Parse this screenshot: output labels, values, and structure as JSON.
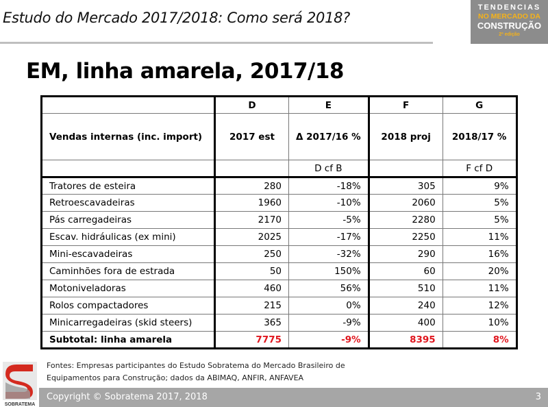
{
  "header": {
    "subtitle": "Estudo do Mercado 2017/2018: Como será 2018?",
    "logo_text": [
      "TENDENCIAS",
      "NO MERCADO DA",
      "CONSTRUÇÃO",
      "2ª edição"
    ]
  },
  "page_title": "EM, linha amarela, 2017/18",
  "table": {
    "col_letters": [
      "",
      "D",
      "E",
      "F",
      "G"
    ],
    "col_headers": [
      "Vendas internas (inc. import)",
      "2017 est",
      "Δ 2017/16 %",
      "2018 proj",
      "2018/17 %"
    ],
    "col_notes": [
      "",
      "",
      "D cf B",
      "",
      "F cf D"
    ],
    "rows": [
      [
        "Tratores de esteira",
        "280",
        "-18%",
        "305",
        "9%"
      ],
      [
        "Retroescavadeiras",
        "1960",
        "-10%",
        "2060",
        "5%"
      ],
      [
        "Pás carregadeiras",
        "2170",
        "-5%",
        "2280",
        "5%"
      ],
      [
        "Escav. hidráulicas (ex mini)",
        "2025",
        "-17%",
        "2250",
        "11%"
      ],
      [
        "Mini-escavadeiras",
        "250",
        "-32%",
        "290",
        "16%"
      ],
      [
        "Caminhões fora de estrada",
        "50",
        "150%",
        "60",
        "20%"
      ],
      [
        "Motoniveladoras",
        "460",
        "56%",
        "510",
        "11%"
      ],
      [
        "Rolos compactadores",
        "215",
        "0%",
        "240",
        "12%"
      ],
      [
        "Minicarregadeiras (skid steers)",
        "365",
        "-9%",
        "400",
        "10%"
      ]
    ],
    "subtotal": [
      "Subtotal: linha amarela",
      "7775",
      "-9%",
      "8395",
      "8%"
    ]
  },
  "fontes": [
    "Fontes: Empresas participantes do Estudo Sobratema do Mercado Brasileiro de",
    "Equipamentos para Construção; dados da ABIMAQ, ANFIR, ANFAVEA"
  ],
  "footer": {
    "copyright": "Copyright © Sobratema 2017, 2018",
    "page": "3",
    "logo_text": "SOBRATEMA"
  },
  "colors": {
    "accent_red": "#e0161e",
    "footer_gray": "#a6a6a6"
  }
}
